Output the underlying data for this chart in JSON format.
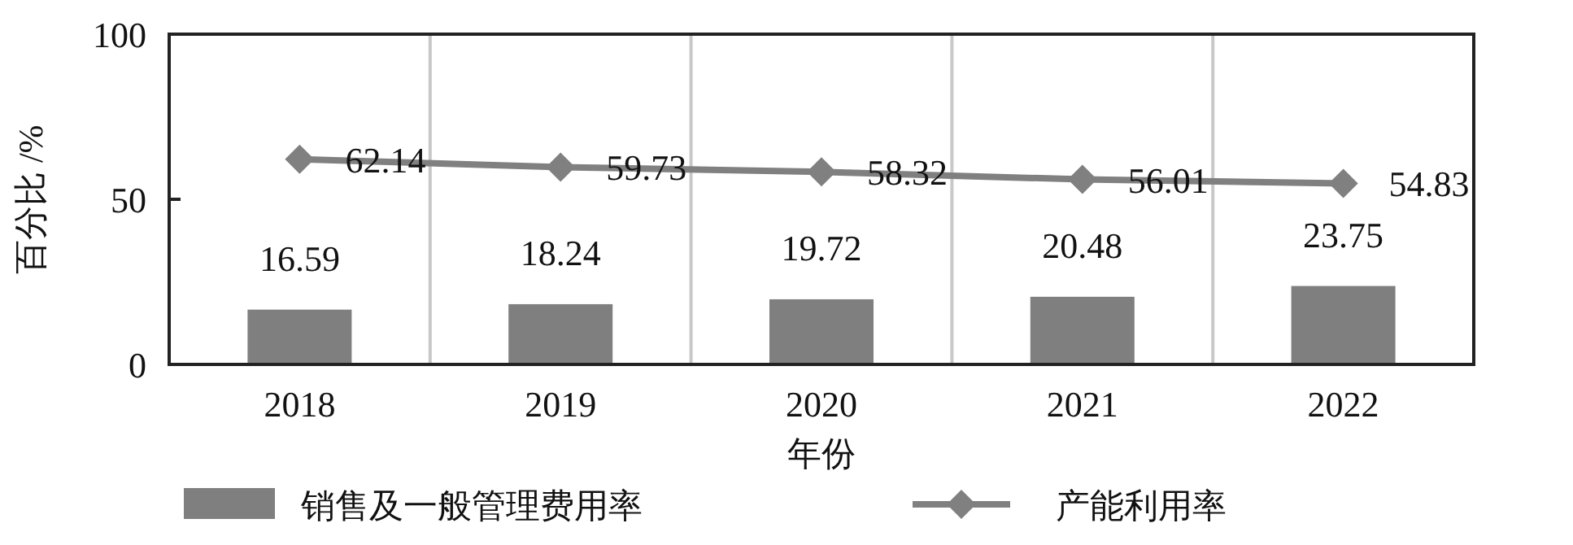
{
  "chart_data": {
    "type": "bar",
    "xlabel": "年份",
    "ylabel": "百分比 /%",
    "categories": [
      "2018",
      "2019",
      "2020",
      "2021",
      "2022"
    ],
    "series": [
      {
        "name": "销售及一般管理费用率",
        "color": "#7f7f7f",
        "values": [
          16.59,
          18.24,
          19.72,
          20.48,
          23.75
        ]
      },
      {
        "name": "产能利用率",
        "type": "line",
        "color": "#808080",
        "marker": "diamond",
        "values": [
          62.14,
          59.73,
          58.32,
          56.01,
          54.83
        ]
      }
    ],
    "ylim": [
      0,
      100
    ],
    "yticks": [
      0,
      50,
      100
    ],
    "grid": "x",
    "legend": "bottom",
    "data_labels": true
  }
}
